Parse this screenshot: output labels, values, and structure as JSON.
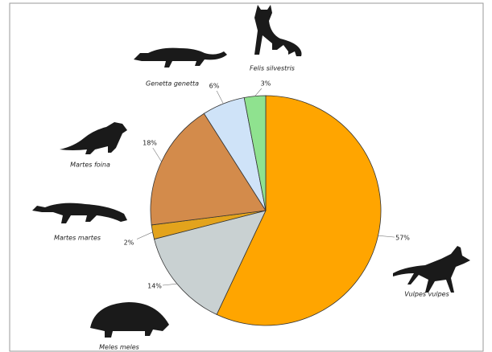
{
  "chart_data": {
    "type": "pie",
    "categories": [
      "Vulpes vulpes",
      "Meles meles",
      "Martes martes",
      "Martes foina",
      "Genetta genetta",
      "Felis silvestris"
    ],
    "values": [
      57,
      14,
      2,
      18,
      6,
      3
    ],
    "value_labels": [
      "57%",
      "14%",
      "2%",
      "18%",
      "6%",
      "3%"
    ],
    "colors": [
      "#ffa500",
      "#c9d1d2",
      "#e3a31c",
      "#d38b4b",
      "#cfe3f8",
      "#8fe28f"
    ]
  }
}
